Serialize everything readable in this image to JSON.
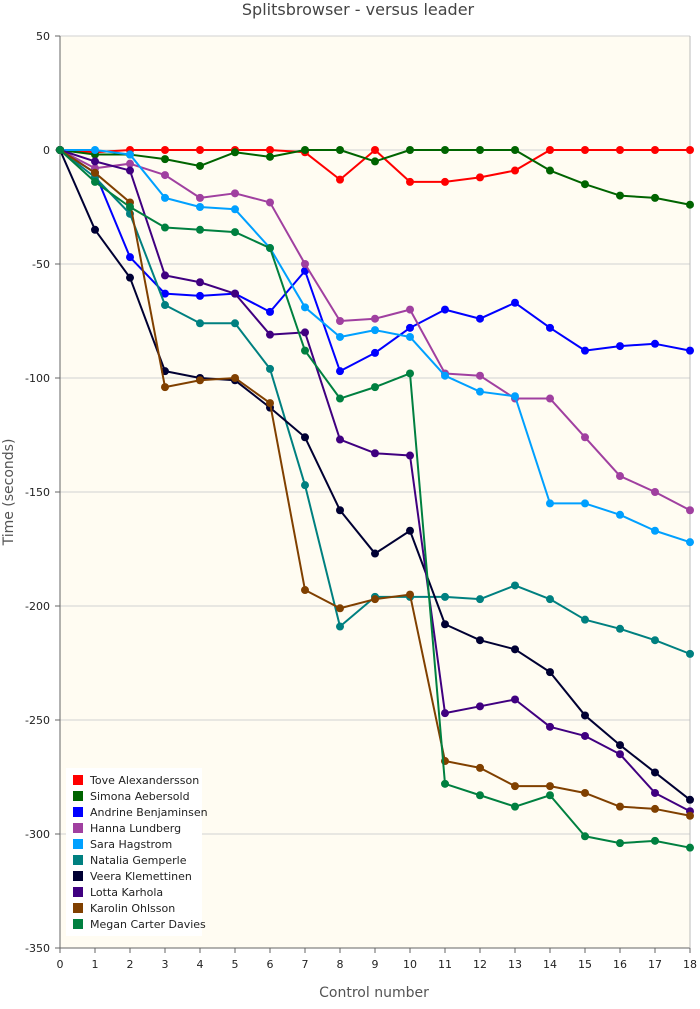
{
  "chart_data": {
    "type": "line",
    "title": "Splitsbrowser - versus leader",
    "xlabel": "Control number",
    "ylabel": "Time (seconds)",
    "xlim": [
      0,
      18
    ],
    "ylim": [
      -350,
      50
    ],
    "x_ticks": [
      0,
      1,
      2,
      3,
      4,
      5,
      6,
      7,
      8,
      9,
      10,
      11,
      12,
      13,
      14,
      15,
      16,
      17,
      18
    ],
    "y_ticks": [
      50,
      0,
      -50,
      -100,
      -150,
      -200,
      -250,
      -300,
      -350
    ],
    "grid": "horizontal",
    "legend_position": "bottom-left",
    "background_color": "#fffcf2",
    "x": [
      0,
      1,
      2,
      3,
      4,
      5,
      6,
      7,
      8,
      9,
      10,
      11,
      12,
      13,
      14,
      15,
      16,
      17,
      18
    ],
    "series": [
      {
        "name": "Tove Alexandersson",
        "color": "#ff0000",
        "values": [
          0,
          -1,
          0,
          0,
          0,
          0,
          0,
          -1,
          -13,
          0,
          -14,
          -14,
          -12,
          -9,
          0,
          0,
          0,
          0,
          0
        ]
      },
      {
        "name": "Simona Aebersold",
        "color": "#006400",
        "values": [
          0,
          -2,
          -2,
          -4,
          -7,
          -1,
          -3,
          0,
          0,
          -5,
          0,
          0,
          0,
          0,
          -9,
          -15,
          -20,
          -21,
          -24
        ]
      },
      {
        "name": "Andrine Benjaminsen",
        "color": "#0000ff",
        "values": [
          0,
          -10,
          -47,
          -63,
          -64,
          -63,
          -71,
          -53,
          -97,
          -89,
          -78,
          -70,
          -74,
          -67,
          -78,
          -88,
          -86,
          -85,
          -88
        ]
      },
      {
        "name": "Hanna Lundberg",
        "color": "#a040a0",
        "values": [
          0,
          -8,
          -6,
          -11,
          -21,
          -19,
          -23,
          -50,
          -75,
          -74,
          -70,
          -98,
          -99,
          -109,
          -109,
          -126,
          -143,
          -150,
          -158
        ]
      },
      {
        "name": "Sara Hagstrom",
        "color": "#00a0ff",
        "values": [
          0,
          0,
          -2,
          -21,
          -25,
          -26,
          -43,
          -69,
          -82,
          -79,
          -82,
          -99,
          -106,
          -108,
          -155,
          -155,
          -160,
          -167,
          -172
        ]
      },
      {
        "name": "Natalia Gemperle",
        "color": "#008080",
        "values": [
          0,
          -12,
          -28,
          -68,
          -76,
          -76,
          -96,
          -147,
          -209,
          -196,
          -196,
          -196,
          -197,
          -191,
          -197,
          -206,
          -210,
          -215,
          -221
        ]
      },
      {
        "name": "Veera Klemettinen",
        "color": "#000033",
        "values": [
          0,
          -35,
          -56,
          -97,
          -100,
          -101,
          -113,
          -126,
          -158,
          -177,
          -167,
          -208,
          -215,
          -219,
          -229,
          -248,
          -261,
          -273,
          -285
        ]
      },
      {
        "name": "Lotta Karhola",
        "color": "#400080",
        "values": [
          0,
          -5,
          -9,
          -55,
          -58,
          -63,
          -81,
          -80,
          -127,
          -133,
          -134,
          -247,
          -244,
          -241,
          -253,
          -257,
          -265,
          -282,
          -290
        ]
      },
      {
        "name": "Karolin Ohlsson",
        "color": "#804000",
        "values": [
          0,
          -10,
          -23,
          -104,
          -101,
          -100,
          -111,
          -193,
          -201,
          -197,
          -195,
          -268,
          -271,
          -279,
          -279,
          -282,
          -288,
          -289,
          -292
        ]
      },
      {
        "name": "Megan Carter Davies",
        "color": "#008040",
        "values": [
          0,
          -14,
          -25,
          -34,
          -35,
          -36,
          -43,
          -88,
          -109,
          -104,
          -98,
          -278,
          -283,
          -288,
          -283,
          -301,
          -304,
          -303,
          -306
        ]
      }
    ]
  }
}
